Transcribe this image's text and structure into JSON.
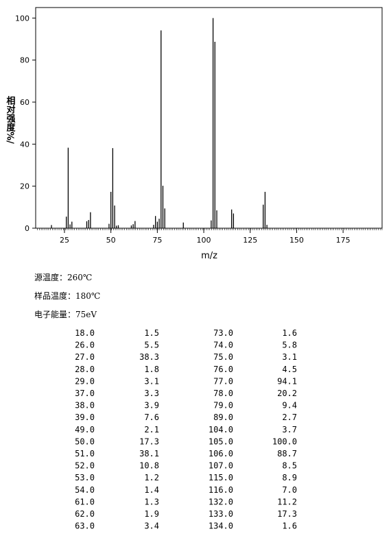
{
  "chart_data": {
    "type": "bar",
    "ylabel": "相对强度%/",
    "xlabel": "m/z",
    "x": [
      18,
      26,
      27,
      28,
      29,
      37,
      38,
      39,
      49,
      50,
      51,
      52,
      53,
      54,
      61,
      62,
      63,
      73,
      74,
      75,
      76,
      77,
      78,
      79,
      89,
      104,
      105,
      106,
      107,
      115,
      116,
      132,
      133,
      134
    ],
    "values": [
      1.5,
      5.5,
      38.3,
      1.8,
      3.1,
      3.3,
      3.9,
      7.6,
      2.1,
      17.3,
      38.1,
      10.8,
      1.2,
      1.4,
      1.3,
      1.9,
      3.4,
      1.6,
      5.8,
      3.1,
      4.5,
      94.1,
      20.2,
      9.4,
      2.7,
      3.7,
      100,
      88.7,
      8.5,
      8.9,
      7.0,
      11.2,
      17.3,
      1.6
    ],
    "color": "#000000",
    "xlim": [
      9.5,
      196
    ],
    "xticks": [
      25,
      50,
      75,
      100,
      125,
      150,
      175
    ],
    "ylim": [
      0,
      105
    ],
    "yticks": [
      0,
      20,
      40,
      60,
      80,
      100
    ]
  },
  "conditions": [
    "源温度：260℃",
    "样品温度：180℃",
    "电子能量：75eV"
  ],
  "table": {
    "rows": [
      [
        "18.0",
        "1.5",
        "73.0",
        "1.6"
      ],
      [
        "26.0",
        "5.5",
        "74.0",
        "5.8"
      ],
      [
        "27.0",
        "38.3",
        "75.0",
        "3.1"
      ],
      [
        "28.0",
        "1.8",
        "76.0",
        "4.5"
      ],
      [
        "29.0",
        "3.1",
        "77.0",
        "94.1"
      ],
      [
        "37.0",
        "3.3",
        "78.0",
        "20.2"
      ],
      [
        "38.0",
        "3.9",
        "79.0",
        "9.4"
      ],
      [
        "39.0",
        "7.6",
        "89.0",
        "2.7"
      ],
      [
        "49.0",
        "2.1",
        "104.0",
        "3.7"
      ],
      [
        "50.0",
        "17.3",
        "105.0",
        "100.0"
      ],
      [
        "51.0",
        "38.1",
        "106.0",
        "88.7"
      ],
      [
        "52.0",
        "10.8",
        "107.0",
        "8.5"
      ],
      [
        "53.0",
        "1.2",
        "115.0",
        "8.9"
      ],
      [
        "54.0",
        "1.4",
        "116.0",
        "7.0"
      ],
      [
        "61.0",
        "1.3",
        "132.0",
        "11.2"
      ],
      [
        "62.0",
        "1.9",
        "133.0",
        "17.3"
      ],
      [
        "63.0",
        "3.4",
        "134.0",
        "1.6"
      ]
    ]
  }
}
